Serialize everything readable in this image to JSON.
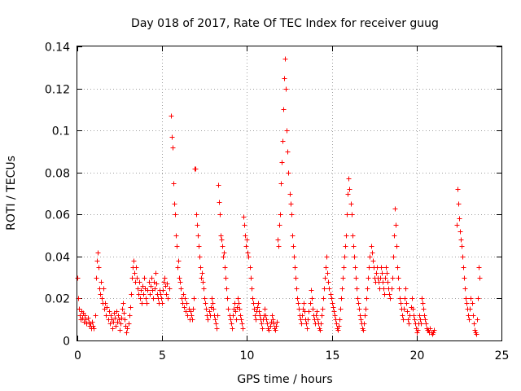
{
  "chart_data": {
    "type": "scatter",
    "title": "Day 018 of 2017, Rate Of TEC Index for receiver guug",
    "xlabel": "GPS time / hours",
    "ylabel": "ROTI / TECUs",
    "xlim": [
      0,
      25
    ],
    "ylim": [
      0,
      0.14
    ],
    "xticks": [
      "0",
      "5",
      "10",
      "15",
      "20",
      "25"
    ],
    "yticks": [
      "0",
      "0.02",
      "0.04",
      "0.06",
      "0.08",
      "0.1",
      "0.12",
      "0.14"
    ],
    "grid": true,
    "marker": "+",
    "colors": {
      "series": "#ff0000",
      "grid": "#a0a0a0",
      "axis": "#000000"
    },
    "series": [
      {
        "x": [
          0.0,
          0.05,
          0.1,
          0.15,
          0.2,
          0.25,
          0.3,
          0.35,
          0.4,
          0.45,
          0.5,
          0.55,
          0.6,
          0.65,
          0.7,
          0.75,
          0.8,
          0.85,
          0.9,
          0.95,
          1.05,
          1.1,
          1.15,
          1.2,
          1.25,
          1.3,
          1.35,
          1.4,
          1.45,
          1.5,
          1.55,
          1.6,
          1.65,
          1.7,
          1.75,
          1.8,
          1.85,
          1.9,
          1.95,
          2.0,
          2.05,
          2.1,
          2.15,
          2.2,
          2.25,
          2.3,
          2.35,
          2.4,
          2.45,
          2.5,
          2.55,
          2.6,
          2.65,
          2.7,
          2.75,
          2.8,
          2.85,
          2.9,
          2.95,
          3.0,
          3.05,
          3.1,
          3.15,
          3.2,
          3.25,
          3.3,
          3.35,
          3.4,
          3.45,
          3.5,
          3.55,
          3.6,
          3.65,
          3.7,
          3.75,
          3.8,
          3.85,
          3.9,
          3.95,
          4.0,
          4.05,
          4.1,
          4.15,
          4.2,
          4.25,
          4.3,
          4.35,
          4.4,
          4.45,
          4.5,
          4.55,
          4.6,
          4.65,
          4.7,
          4.75,
          4.8,
          4.85,
          4.9,
          4.95,
          5.0,
          5.05,
          5.1,
          5.15,
          5.2,
          5.25,
          5.3,
          5.35,
          5.4,
          5.5,
          5.55,
          5.6,
          5.65,
          5.7,
          5.75,
          5.8,
          5.85,
          5.9,
          5.95,
          6.0,
          6.05,
          6.1,
          6.15,
          6.2,
          6.25,
          6.3,
          6.35,
          6.4,
          6.45,
          6.5,
          6.55,
          6.6,
          6.65,
          6.7,
          6.75,
          6.8,
          6.85,
          6.9,
          6.95,
          7.0,
          7.05,
          7.1,
          7.15,
          7.2,
          7.25,
          7.3,
          7.35,
          7.4,
          7.45,
          7.5,
          7.55,
          7.6,
          7.65,
          7.7,
          7.75,
          7.8,
          7.85,
          7.9,
          7.95,
          8.0,
          8.05,
          8.1,
          8.15,
          8.2,
          8.25,
          8.3,
          8.35,
          8.4,
          8.45,
          8.5,
          8.55,
          8.6,
          8.65,
          8.7,
          8.75,
          8.8,
          8.85,
          8.9,
          8.95,
          9.0,
          9.05,
          9.1,
          9.15,
          9.2,
          9.25,
          9.3,
          9.35,
          9.4,
          9.45,
          9.5,
          9.55,
          9.6,
          9.65,
          9.7,
          9.75,
          9.8,
          9.85,
          9.9,
          9.95,
          10.0,
          10.05,
          10.1,
          10.15,
          10.2,
          10.25,
          10.3,
          10.35,
          10.4,
          10.45,
          10.5,
          10.55,
          10.6,
          10.65,
          10.7,
          10.75,
          10.8,
          10.85,
          10.9,
          10.95,
          11.0,
          11.05,
          11.1,
          11.15,
          11.2,
          11.25,
          11.3,
          11.35,
          11.4,
          11.45,
          11.5,
          11.55,
          11.6,
          11.65,
          11.7,
          11.75,
          11.8,
          11.85,
          11.9,
          11.95,
          12.0,
          12.05,
          12.1,
          12.15,
          12.2,
          12.25,
          12.3,
          12.35,
          12.4,
          12.45,
          12.5,
          12.55,
          12.6,
          12.65,
          12.7,
          12.75,
          12.8,
          12.85,
          12.9,
          12.95,
          13.0,
          13.05,
          13.1,
          13.15,
          13.2,
          13.25,
          13.3,
          13.35,
          13.4,
          13.45,
          13.5,
          13.55,
          13.6,
          13.65,
          13.7,
          13.75,
          13.8,
          13.85,
          13.9,
          13.95,
          14.0,
          14.05,
          14.1,
          14.15,
          14.2,
          14.25,
          14.3,
          14.35,
          14.4,
          14.45,
          14.5,
          14.55,
          14.6,
          14.65,
          14.7,
          14.75,
          14.8,
          14.85,
          14.9,
          14.95,
          15.0,
          15.05,
          15.1,
          15.15,
          15.2,
          15.25,
          15.3,
          15.35,
          15.4,
          15.45,
          15.5,
          15.55,
          15.6,
          15.65,
          15.7,
          15.75,
          15.8,
          15.85,
          15.9,
          15.95,
          16.0,
          16.05,
          16.1,
          16.15,
          16.2,
          16.25,
          16.3,
          16.35,
          16.4,
          16.45,
          16.5,
          16.55,
          16.6,
          16.65,
          16.7,
          16.75,
          16.8,
          16.85,
          16.9,
          16.95,
          17.0,
          17.05,
          17.1,
          17.15,
          17.2,
          17.25,
          17.3,
          17.35,
          17.4,
          17.45,
          17.5,
          17.55,
          17.6,
          17.65,
          17.7,
          17.75,
          17.8,
          17.85,
          17.9,
          17.95,
          18.0,
          18.05,
          18.1,
          18.15,
          18.2,
          18.25,
          18.3,
          18.35,
          18.4,
          18.45,
          18.5,
          18.55,
          18.6,
          18.65,
          18.7,
          18.75,
          18.8,
          18.85,
          18.9,
          18.95,
          19.0,
          19.05,
          19.1,
          19.15,
          19.2,
          19.25,
          19.3,
          19.35,
          19.4,
          19.45,
          19.5,
          19.55,
          19.6,
          19.65,
          19.7,
          19.75,
          19.8,
          19.85,
          19.9,
          19.95,
          20.0,
          20.05,
          20.1,
          20.15,
          20.2,
          20.25,
          20.3,
          20.35,
          20.4,
          20.45,
          20.5,
          20.55,
          20.6,
          20.65,
          20.7,
          20.75,
          20.8,
          20.85,
          20.9,
          20.95,
          21.0,
          22.35,
          22.4,
          22.45,
          22.5,
          22.55,
          22.6,
          22.65,
          22.7,
          22.75,
          22.8,
          22.85,
          22.9,
          22.95,
          23.0,
          23.05,
          23.1,
          23.15,
          23.2,
          23.25,
          23.3,
          23.35,
          23.4,
          23.45,
          23.5,
          23.55,
          23.6,
          23.65,
          23.7
        ],
        "y": [
          0.03,
          0.02,
          0.015,
          0.012,
          0.01,
          0.014,
          0.011,
          0.013,
          0.009,
          0.012,
          0.01,
          0.008,
          0.011,
          0.009,
          0.007,
          0.008,
          0.006,
          0.009,
          0.007,
          0.006,
          0.012,
          0.03,
          0.038,
          0.042,
          0.035,
          0.025,
          0.022,
          0.028,
          0.02,
          0.018,
          0.025,
          0.015,
          0.018,
          0.012,
          0.016,
          0.01,
          0.014,
          0.008,
          0.012,
          0.01,
          0.006,
          0.009,
          0.013,
          0.011,
          0.007,
          0.014,
          0.009,
          0.012,
          0.01,
          0.005,
          0.008,
          0.011,
          0.015,
          0.018,
          0.013,
          0.01,
          0.007,
          0.004,
          0.006,
          0.008,
          0.012,
          0.016,
          0.022,
          0.03,
          0.035,
          0.038,
          0.032,
          0.028,
          0.035,
          0.03,
          0.025,
          0.022,
          0.028,
          0.02,
          0.024,
          0.018,
          0.026,
          0.022,
          0.03,
          0.025,
          0.02,
          0.018,
          0.024,
          0.028,
          0.022,
          0.026,
          0.03,
          0.024,
          0.02,
          0.028,
          0.025,
          0.032,
          0.027,
          0.022,
          0.02,
          0.018,
          0.024,
          0.022,
          0.02,
          0.018,
          0.024,
          0.028,
          0.03,
          0.026,
          0.022,
          0.027,
          0.02,
          0.025,
          0.107,
          0.097,
          0.092,
          0.075,
          0.065,
          0.06,
          0.05,
          0.045,
          0.035,
          0.038,
          0.03,
          0.028,
          0.025,
          0.02,
          0.018,
          0.022,
          0.016,
          0.02,
          0.014,
          0.018,
          0.012,
          0.015,
          0.01,
          0.014,
          0.012,
          0.01,
          0.015,
          0.02,
          0.082,
          0.082,
          0.06,
          0.055,
          0.05,
          0.045,
          0.04,
          0.035,
          0.03,
          0.032,
          0.028,
          0.025,
          0.02,
          0.018,
          0.015,
          0.012,
          0.01,
          0.014,
          0.012,
          0.016,
          0.02,
          0.018,
          0.015,
          0.012,
          0.01,
          0.008,
          0.006,
          0.012,
          0.074,
          0.066,
          0.06,
          0.05,
          0.048,
          0.045,
          0.04,
          0.042,
          0.035,
          0.03,
          0.025,
          0.02,
          0.015,
          0.012,
          0.01,
          0.008,
          0.006,
          0.012,
          0.015,
          0.018,
          0.014,
          0.01,
          0.016,
          0.02,
          0.018,
          0.015,
          0.012,
          0.01,
          0.008,
          0.006,
          0.059,
          0.055,
          0.05,
          0.045,
          0.048,
          0.042,
          0.04,
          0.035,
          0.03,
          0.025,
          0.02,
          0.018,
          0.015,
          0.012,
          0.01,
          0.014,
          0.016,
          0.018,
          0.014,
          0.012,
          0.01,
          0.008,
          0.006,
          0.01,
          0.012,
          0.015,
          0.012,
          0.01,
          0.008,
          0.006,
          0.005,
          0.007,
          0.009,
          0.012,
          0.01,
          0.008,
          0.006,
          0.005,
          0.007,
          0.009,
          0.048,
          0.045,
          0.055,
          0.06,
          0.075,
          0.085,
          0.095,
          0.11,
          0.125,
          0.134,
          0.12,
          0.1,
          0.09,
          0.08,
          0.07,
          0.065,
          0.06,
          0.05,
          0.045,
          0.04,
          0.035,
          0.03,
          0.025,
          0.02,
          0.018,
          0.015,
          0.012,
          0.01,
          0.008,
          0.012,
          0.015,
          0.018,
          0.014,
          0.01,
          0.008,
          0.006,
          0.01,
          0.014,
          0.018,
          0.024,
          0.02,
          0.015,
          0.012,
          0.01,
          0.008,
          0.012,
          0.014,
          0.01,
          0.008,
          0.006,
          0.005,
          0.008,
          0.012,
          0.015,
          0.02,
          0.025,
          0.03,
          0.035,
          0.04,
          0.032,
          0.028,
          0.025,
          0.022,
          0.02,
          0.018,
          0.016,
          0.014,
          0.012,
          0.01,
          0.008,
          0.006,
          0.005,
          0.007,
          0.01,
          0.015,
          0.02,
          0.025,
          0.03,
          0.035,
          0.04,
          0.045,
          0.05,
          0.06,
          0.07,
          0.077,
          0.072,
          0.065,
          0.06,
          0.05,
          0.045,
          0.04,
          0.035,
          0.03,
          0.025,
          0.02,
          0.018,
          0.015,
          0.012,
          0.01,
          0.008,
          0.006,
          0.005,
          0.008,
          0.012,
          0.015,
          0.02,
          0.025,
          0.03,
          0.035,
          0.04,
          0.045,
          0.042,
          0.038,
          0.035,
          0.03,
          0.028,
          0.032,
          0.035,
          0.03,
          0.028,
          0.025,
          0.03,
          0.035,
          0.032,
          0.028,
          0.025,
          0.022,
          0.03,
          0.035,
          0.032,
          0.028,
          0.025,
          0.022,
          0.02,
          0.025,
          0.03,
          0.04,
          0.05,
          0.063,
          0.055,
          0.045,
          0.035,
          0.03,
          0.025,
          0.02,
          0.018,
          0.015,
          0.012,
          0.01,
          0.015,
          0.02,
          0.025,
          0.018,
          0.014,
          0.01,
          0.008,
          0.012,
          0.016,
          0.02,
          0.015,
          0.012,
          0.01,
          0.008,
          0.006,
          0.004,
          0.005,
          0.008,
          0.012,
          0.01,
          0.008,
          0.02,
          0.018,
          0.015,
          0.012,
          0.01,
          0.008,
          0.006,
          0.005,
          0.005,
          0.004,
          0.006,
          0.004,
          0.003,
          0.004,
          0.005,
          0.055,
          0.072,
          0.065,
          0.058,
          0.052,
          0.048,
          0.045,
          0.04,
          0.035,
          0.03,
          0.025,
          0.02,
          0.018,
          0.015,
          0.012,
          0.01,
          0.015,
          0.02,
          0.018,
          0.012,
          0.008,
          0.005,
          0.004,
          0.003,
          0.01,
          0.02,
          0.035,
          0.03
        ]
      }
    ]
  }
}
